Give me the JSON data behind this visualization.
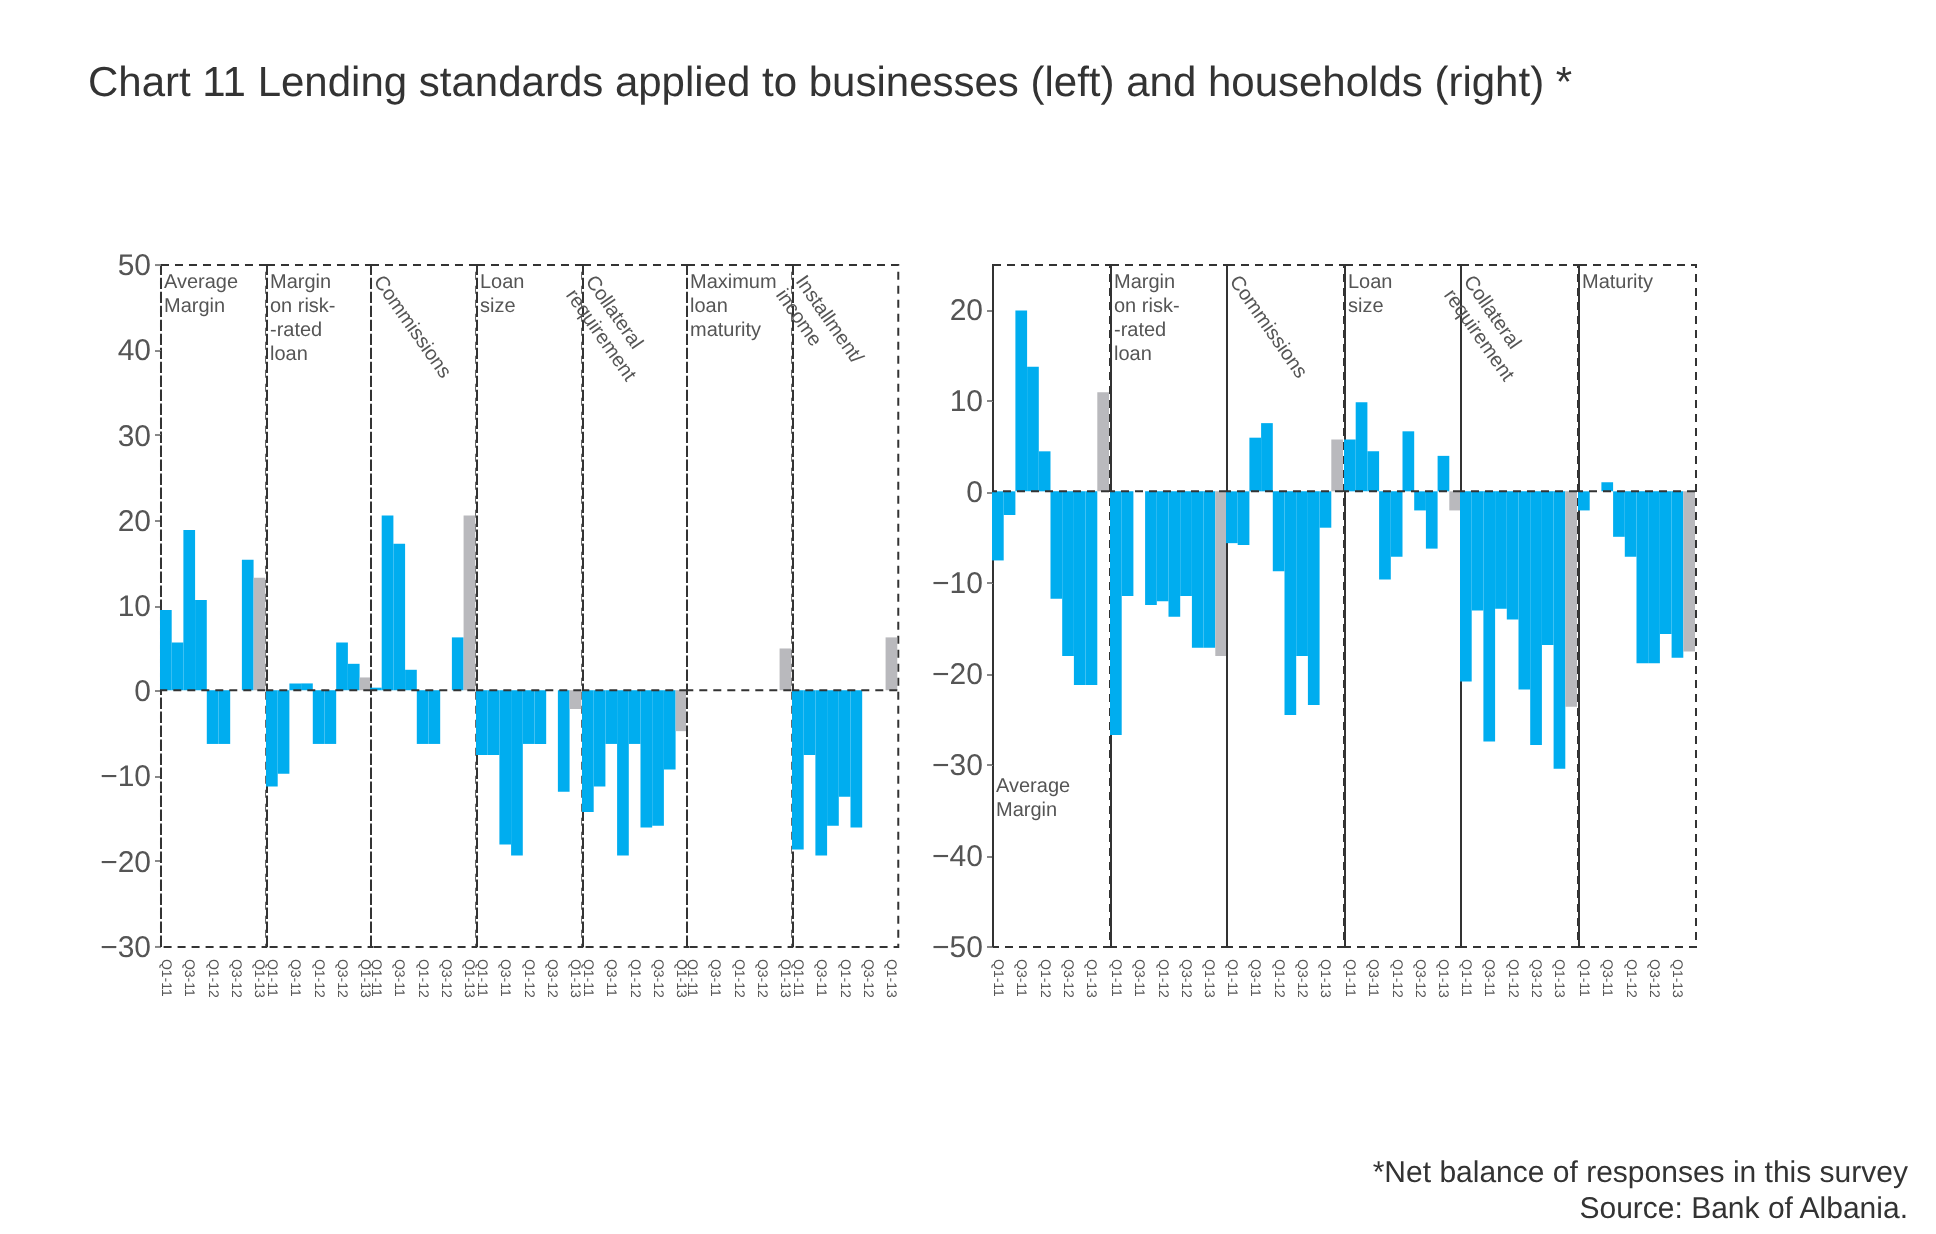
{
  "chart_data": [
    {
      "type": "bar",
      "title": "Chart 11 Lending standards applied to businesses (left) and households (right) *",
      "categories": [
        "Q1-11",
        null,
        "Q3-11",
        null,
        "Q1-12",
        null,
        "Q3-12",
        null,
        "Q1-13"
      ],
      "values": [
        9.4,
        5.6,
        18.8,
        10.6,
        -6.3,
        -6.3,
        0,
        15.3,
        13.2
      ],
      "colors": [
        "#00adef",
        "#00adef",
        "#00adef",
        "#00adef",
        "#00adef",
        "#00adef",
        "#00adef",
        "#00adef",
        "#b9b9bd"
      ],
      "ylim": [
        -30,
        50
      ],
      "yticks": [
        -30,
        -20,
        -10,
        0,
        10,
        20,
        30,
        40,
        50
      ],
      "annotations": [
        "Average\nMargin"
      ],
      "ref_lines": [
        {
          "axis": "y",
          "value": 0,
          "line_style": "dashed",
          "color": "#333333"
        }
      ]
    },
    {
      "type": "bar",
      "categories": [
        "Q1-11",
        null,
        "Q3-11",
        null,
        "Q1-12",
        null,
        "Q3-12",
        null,
        "Q1-13"
      ],
      "values": [
        -11.3,
        -9.8,
        0.8,
        0.8,
        -6.3,
        -6.3,
        5.6,
        3.1,
        1.5
      ],
      "colors": [
        "#00adef",
        "#00adef",
        "#00adef",
        "#00adef",
        "#00adef",
        "#00adef",
        "#00adef",
        "#00adef",
        "#b9b9bd"
      ],
      "ylim": [
        -30,
        50
      ],
      "yticks": [
        -30,
        -20,
        -10,
        0,
        10,
        20,
        30,
        40,
        50
      ],
      "tick_labels": "x",
      "annotations": [
        "Margin\non risk-\n-rated\nloan"
      ],
      "ref_lines": [
        {
          "axis": "y",
          "value": 0,
          "line_style": "dashed",
          "color": "#333333"
        }
      ]
    },
    {
      "type": "bar",
      "categories": [
        "Q1-11",
        null,
        "Q3-11",
        null,
        "Q1-12",
        null,
        "Q3-12",
        null,
        "Q1-13"
      ],
      "values": [
        0.3,
        20.5,
        17.2,
        2.4,
        -6.3,
        -6.3,
        0,
        6.2,
        20.5
      ],
      "colors": [
        "#00adef",
        "#00adef",
        "#00adef",
        "#00adef",
        "#00adef",
        "#00adef",
        "#00adef",
        "#00adef",
        "#b9b9bd"
      ],
      "ylim": [
        -30,
        50
      ],
      "yticks": [
        -30,
        -20,
        -10,
        0,
        10,
        20,
        30,
        40,
        50
      ],
      "tick_labels": "x",
      "annotations": [
        "Commissions"
      ],
      "ref_lines": [
        {
          "axis": "y",
          "value": 0,
          "line_style": "dashed",
          "color": "#333333"
        }
      ]
    },
    {
      "type": "bar",
      "categories": [
        "Q1-11",
        null,
        "Q3-11",
        null,
        "Q1-12",
        null,
        "Q3-12",
        null,
        "Q1-13"
      ],
      "values": [
        -7.6,
        -7.6,
        -18.1,
        -19.4,
        -6.3,
        -6.3,
        0,
        -11.9,
        -2.2
      ],
      "colors": [
        "#00adef",
        "#00adef",
        "#00adef",
        "#00adef",
        "#00adef",
        "#00adef",
        "#00adef",
        "#00adef",
        "#b9b9bd"
      ],
      "ylim": [
        -30,
        50
      ],
      "yticks": [
        -30,
        -20,
        -10,
        0,
        10,
        20,
        30,
        40,
        50
      ],
      "tick_labels": "x",
      "annotations": [
        "Loan\nsize"
      ],
      "ref_lines": [
        {
          "axis": "y",
          "value": 0,
          "line_style": "dashed",
          "color": "#333333"
        }
      ]
    },
    {
      "type": "bar",
      "categories": [
        "Q1-11",
        null,
        "Q3-11",
        null,
        "Q1-12",
        null,
        "Q3-12",
        null,
        "Q1-13"
      ],
      "values": [
        -14.3,
        -11.3,
        -6.3,
        -19.4,
        -6.3,
        -16.1,
        -15.9,
        -9.3,
        -4.8
      ],
      "colors": [
        "#00adef",
        "#00adef",
        "#00adef",
        "#00adef",
        "#00adef",
        "#00adef",
        "#00adef",
        "#00adef",
        "#b9b9bd"
      ],
      "ylim": [
        -30,
        50
      ],
      "yticks": [
        -30,
        -20,
        -10,
        0,
        10,
        20,
        30,
        40,
        50
      ],
      "tick_labels": "x",
      "annotations": [
        "Collateral\nrequirement"
      ],
      "ref_lines": [
        {
          "axis": "y",
          "value": 0,
          "line_style": "dashed",
          "color": "#333333"
        }
      ]
    },
    {
      "type": "bar",
      "categories": [
        "Q1-11",
        null,
        "Q3-11",
        null,
        "Q1-12",
        null,
        "Q3-12",
        null,
        "Q1-13"
      ],
      "values": [
        0,
        0,
        0,
        0,
        0,
        0,
        0,
        0,
        4.9
      ],
      "colors": [
        "#00adef",
        "#00adef",
        "#00adef",
        "#00adef",
        "#00adef",
        "#00adef",
        "#00adef",
        "#00adef",
        "#b9b9bd"
      ],
      "ylim": [
        -30,
        50
      ],
      "yticks": [
        -30,
        -20,
        -10,
        0,
        10,
        20,
        30,
        40,
        50
      ],
      "tick_labels": "x",
      "annotations": [
        "Maximum\nloan\nmaturity"
      ],
      "ref_lines": [
        {
          "axis": "y",
          "value": 0,
          "line_style": "dashed",
          "color": "#333333"
        }
      ]
    },
    {
      "type": "bar",
      "categories": [
        "Q1-11",
        null,
        "Q3-11",
        null,
        "Q1-12",
        null,
        "Q3-12",
        null,
        "Q1-13"
      ],
      "values": [
        -18.7,
        -7.6,
        -19.4,
        -15.9,
        -12.5,
        -16.1,
        0,
        0,
        6.2
      ],
      "colors": [
        "#00adef",
        "#00adef",
        "#00adef",
        "#00adef",
        "#00adef",
        "#00adef",
        "#00adef",
        "#00adef",
        "#b9b9bd"
      ],
      "ylim": [
        -30,
        50
      ],
      "yticks": [
        -30,
        -20,
        -10,
        0,
        10,
        20,
        30,
        40,
        50
      ],
      "tick_labels": "x",
      "annotations": [
        "Installment/\nincome"
      ],
      "ref_lines": [
        {
          "axis": "y",
          "value": 0,
          "line_style": "dashed",
          "color": "#333333"
        }
      ]
    },
    {
      "type": "bar",
      "categories": [
        "Q1-11",
        null,
        "Q3-11",
        null,
        "Q1-12",
        null,
        "Q3-12",
        null,
        "Q1-13",
        null
      ],
      "values": [
        -7.6,
        -2.6,
        19.9,
        13.7,
        4.4,
        -11.8,
        -18.1,
        -21.3,
        -21.3,
        10.9
      ],
      "colors": [
        "#00adef",
        "#00adef",
        "#00adef",
        "#00adef",
        "#00adef",
        "#00adef",
        "#00adef",
        "#00adef",
        "#00adef",
        "#b9b9bd"
      ],
      "ylim": [
        -50,
        25
      ],
      "yticks": [
        -50,
        -40,
        -30,
        -20,
        -10,
        0,
        10,
        20
      ],
      "annotations": [
        "Average\nMargin"
      ],
      "ref_lines": [
        {
          "axis": "y",
          "value": 0,
          "line_style": "dashed",
          "color": "#333333"
        }
      ]
    },
    {
      "type": "bar",
      "categories": [
        "Q1-11",
        null,
        "Q3-11",
        null,
        "Q1-12",
        null,
        "Q3-12",
        null,
        "Q1-13",
        null
      ],
      "values": [
        -26.8,
        -11.5,
        0,
        -12.5,
        -12.1,
        -13.8,
        -11.5,
        -17.2,
        -17.2,
        -18.1
      ],
      "colors": [
        "#00adef",
        "#00adef",
        "#00adef",
        "#00adef",
        "#00adef",
        "#00adef",
        "#00adef",
        "#00adef",
        "#00adef",
        "#b9b9bd"
      ],
      "ylim": [
        -50,
        25
      ],
      "yticks": [
        -50,
        -40,
        -30,
        -20,
        -10,
        0,
        10,
        20
      ],
      "tick_labels": "x",
      "annotations": [
        "Margin\non risk-\n-rated\nloan"
      ],
      "ref_lines": [
        {
          "axis": "y",
          "value": 0,
          "line_style": "dashed",
          "color": "#333333"
        }
      ]
    },
    {
      "type": "bar",
      "categories": [
        "Q1-11",
        null,
        "Q3-11",
        null,
        "Q1-12",
        null,
        "Q3-12",
        null,
        "Q1-13",
        null
      ],
      "values": [
        -5.7,
        -5.9,
        5.9,
        7.5,
        -8.8,
        -24.6,
        -18.1,
        -23.5,
        -4.0,
        5.7
      ],
      "colors": [
        "#00adef",
        "#00adef",
        "#00adef",
        "#00adef",
        "#00adef",
        "#00adef",
        "#00adef",
        "#00adef",
        "#00adef",
        "#b9b9bd"
      ],
      "ylim": [
        -50,
        25
      ],
      "yticks": [
        -50,
        -40,
        -30,
        -20,
        -10,
        0,
        10,
        20
      ],
      "tick_labels": "x",
      "annotations": [
        "Commissions"
      ],
      "ref_lines": [
        {
          "axis": "y",
          "value": 0,
          "line_style": "dashed",
          "color": "#333333"
        }
      ]
    },
    {
      "type": "bar",
      "categories": [
        "Q1-11",
        null,
        "Q3-11",
        null,
        "Q1-12",
        null,
        "Q3-12",
        null,
        "Q1-13",
        null
      ],
      "values": [
        5.7,
        9.8,
        4.4,
        -9.7,
        -7.2,
        6.6,
        -2.1,
        -6.3,
        3.9,
        -2.1
      ],
      "colors": [
        "#00adef",
        "#00adef",
        "#00adef",
        "#00adef",
        "#00adef",
        "#00adef",
        "#00adef",
        "#00adef",
        "#00adef",
        "#b9b9bd"
      ],
      "ylim": [
        -50,
        25
      ],
      "yticks": [
        -50,
        -40,
        -30,
        -20,
        -10,
        0,
        10,
        20
      ],
      "tick_labels": "x",
      "annotations": [
        "Loan\nsize"
      ],
      "ref_lines": [
        {
          "axis": "y",
          "value": 0,
          "line_style": "dashed",
          "color": "#333333"
        }
      ]
    },
    {
      "type": "bar",
      "categories": [
        "Q1-11",
        null,
        "Q3-11",
        null,
        "Q1-12",
        null,
        "Q3-12",
        null,
        "Q1-13",
        null
      ],
      "values": [
        -20.9,
        -13.1,
        -27.5,
        -12.9,
        -14.1,
        -21.8,
        -27.9,
        -16.9,
        -30.5,
        -23.7
      ],
      "colors": [
        "#00adef",
        "#00adef",
        "#00adef",
        "#00adef",
        "#00adef",
        "#00adef",
        "#00adef",
        "#00adef",
        "#00adef",
        "#b9b9bd"
      ],
      "ylim": [
        -50,
        25
      ],
      "yticks": [
        -50,
        -40,
        -30,
        -20,
        -10,
        0,
        10,
        20
      ],
      "tick_labels": "x",
      "annotations": [
        "Collateral\nrequirement"
      ],
      "ref_lines": [
        {
          "axis": "y",
          "value": 0,
          "line_style": "dashed",
          "color": "#333333"
        }
      ]
    },
    {
      "type": "bar",
      "categories": [
        "Q1-11",
        null,
        "Q3-11",
        null,
        "Q1-12",
        null,
        "Q3-12",
        null,
        "Q1-13",
        null
      ],
      "values": [
        -2.1,
        0,
        1.0,
        -5.0,
        -7.2,
        -18.9,
        -18.9,
        -15.7,
        -18.3,
        -17.6
      ],
      "colors": [
        "#00adef",
        "#00adef",
        "#00adef",
        "#00adef",
        "#00adef",
        "#00adef",
        "#00adef",
        "#00adef",
        "#00adef",
        "#b9b9bd"
      ],
      "ylim": [
        -50,
        25
      ],
      "yticks": [
        -50,
        -40,
        -30,
        -20,
        -10,
        0,
        10,
        20
      ],
      "tick_labels": "x",
      "annotations": [
        "Maturity",
        "*Net balance of responses in this survey",
        "Source: Bank of Albania."
      ],
      "ref_lines": [
        {
          "axis": "y",
          "value": 0,
          "line_style": "dashed",
          "color": "#333333"
        }
      ]
    }
  ]
}
